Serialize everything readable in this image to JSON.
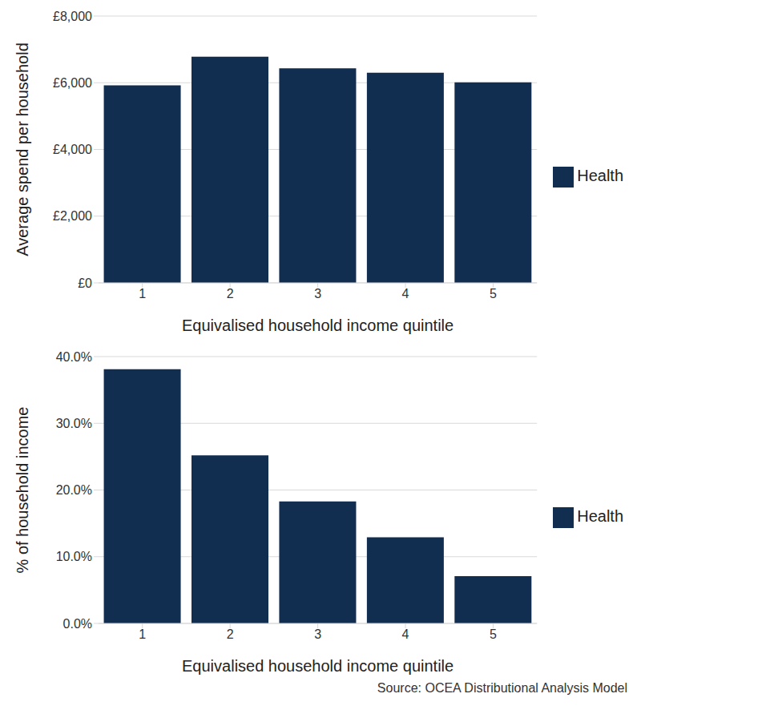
{
  "chart_data": [
    {
      "type": "bar",
      "x_label": "Equivalised household income quintile",
      "y_label": "Average spend per household",
      "categories": [
        "1",
        "2",
        "3",
        "4",
        "5"
      ],
      "series": [
        {
          "name": "Health",
          "color": "#112d50",
          "values": [
            5920,
            6780,
            6430,
            6300,
            6010
          ]
        }
      ],
      "ylim": [
        0,
        8000
      ],
      "yticks": [
        {
          "value": 0,
          "label": "£0"
        },
        {
          "value": 2000,
          "label": "£2,000"
        },
        {
          "value": 4000,
          "label": "£4,000"
        },
        {
          "value": 6000,
          "label": "£6,000"
        },
        {
          "value": 8000,
          "label": "£8,000"
        }
      ],
      "grid": true,
      "legend": "right"
    },
    {
      "type": "bar",
      "x_label": "Equivalised household income quintile",
      "y_label": "% of household income",
      "categories": [
        "1",
        "2",
        "3",
        "4",
        "5"
      ],
      "series": [
        {
          "name": "Health",
          "color": "#112d50",
          "values": [
            38.1,
            25.2,
            18.3,
            12.9,
            7.1
          ]
        }
      ],
      "ylim": [
        0,
        40
      ],
      "yticks": [
        {
          "value": 0,
          "label": "0.0%"
        },
        {
          "value": 10,
          "label": "10.0%"
        },
        {
          "value": 20,
          "label": "20.0%"
        },
        {
          "value": 30,
          "label": "30.0%"
        },
        {
          "value": 40,
          "label": "40.0%"
        }
      ],
      "grid": true,
      "legend": "right",
      "annotation": "Source: OCEA Distributional Analysis Model"
    }
  ]
}
